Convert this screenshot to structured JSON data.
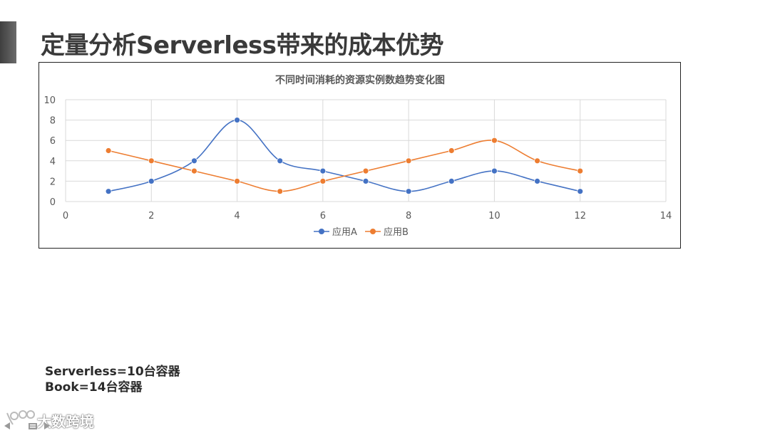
{
  "slide": {
    "title": "定量分析Serverless带来的成本优势",
    "notes": [
      "Serverless=10台容器",
      "Book=14台容器"
    ],
    "watermark": "大数跨境"
  },
  "colors": {
    "series_a": "#4472c4",
    "series_b": "#ed7d31",
    "grid": "#d9d9d9",
    "axis_text": "#595959"
  },
  "chart_data": {
    "type": "scatter",
    "title": "不同时间消耗的资源实例数趋势变化图",
    "xlim": [
      0,
      14
    ],
    "ylim": [
      0,
      10
    ],
    "xticks": [
      0,
      2,
      4,
      6,
      8,
      10,
      12,
      14
    ],
    "yticks": [
      0,
      2,
      4,
      6,
      8,
      10
    ],
    "grid": true,
    "smooth_lines": true,
    "legend_position": "bottom",
    "series": [
      {
        "name": "应用A",
        "color": "#4472c4",
        "x": [
          1,
          2,
          3,
          4,
          5,
          6,
          7,
          8,
          9,
          10,
          11,
          12
        ],
        "y": [
          1,
          2,
          4,
          8,
          4,
          3,
          2,
          1,
          2,
          3,
          2,
          1
        ]
      },
      {
        "name": "应用B",
        "color": "#ed7d31",
        "x": [
          1,
          2,
          3,
          4,
          5,
          6,
          7,
          8,
          9,
          10,
          11,
          12
        ],
        "y": [
          5,
          4,
          3,
          2,
          1,
          2,
          3,
          4,
          5,
          6,
          4,
          3
        ]
      }
    ]
  }
}
